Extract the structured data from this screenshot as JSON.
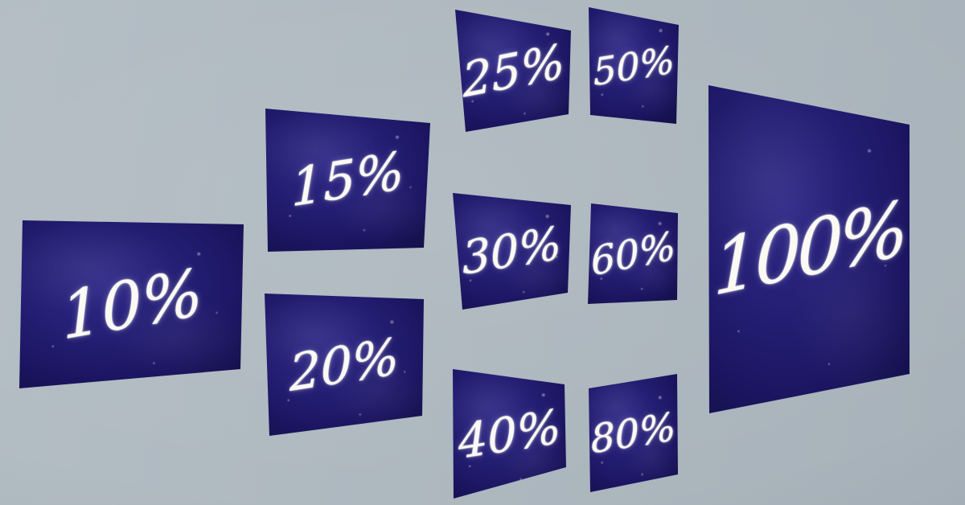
{
  "colors": {
    "wall_gray": "#aeb8bf",
    "board_blue": "#241e73",
    "board_blue_dark": "#131047",
    "chalk_white": "#faf9f3"
  },
  "panels": [
    {
      "id": "10",
      "label": "10%"
    },
    {
      "id": "15",
      "label": "15%"
    },
    {
      "id": "20",
      "label": "20%"
    },
    {
      "id": "25",
      "label": "25%"
    },
    {
      "id": "30",
      "label": "30%"
    },
    {
      "id": "40",
      "label": "40%"
    },
    {
      "id": "50",
      "label": "50%"
    },
    {
      "id": "60",
      "label": "60%"
    },
    {
      "id": "80",
      "label": "80%"
    },
    {
      "id": "100",
      "label": "100%"
    }
  ]
}
